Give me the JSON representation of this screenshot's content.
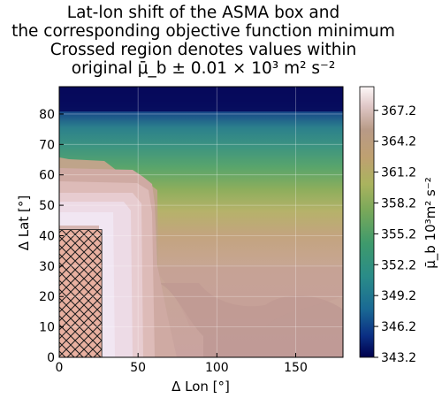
{
  "chart_data": {
    "type": "heatmap",
    "title_lines": [
      "Lat-lon shift of the ASMA box and",
      "the corresponding objective function minimum",
      "Crossed region denotes values within",
      "original μ̄_b ± 0.01 × 10³ m² s⁻²"
    ],
    "xlabel": "Δ Lon [°]",
    "ylabel": "Δ Lat [°]",
    "xlim": [
      0,
      180
    ],
    "ylim": [
      0,
      89
    ],
    "xticks": [
      0,
      50,
      100,
      150
    ],
    "yticks": [
      0,
      10,
      20,
      30,
      40,
      50,
      60,
      70,
      80
    ],
    "grid": true,
    "colorbar": {
      "label": "μ̄_b 10³m² s⁻²",
      "min": 343.2,
      "max": 369.5,
      "ticks": [
        "343.2",
        "346.2",
        "349.2",
        "352.2",
        "355.2",
        "358.2",
        "361.2",
        "364.2",
        "367.2"
      ],
      "colormap": "gist_earth"
    },
    "crossed_region": {
      "lon": [
        0,
        27
      ],
      "lat": [
        0,
        42
      ]
    },
    "field_description": "values near 343 in the top rows (lat > 80), increasing southward through green (~356) and tan (~364) to pale pink/lavender (~367-369) at low latitudes; a near-white plateau (~369) occupies lon < 60, lat < 57"
  }
}
